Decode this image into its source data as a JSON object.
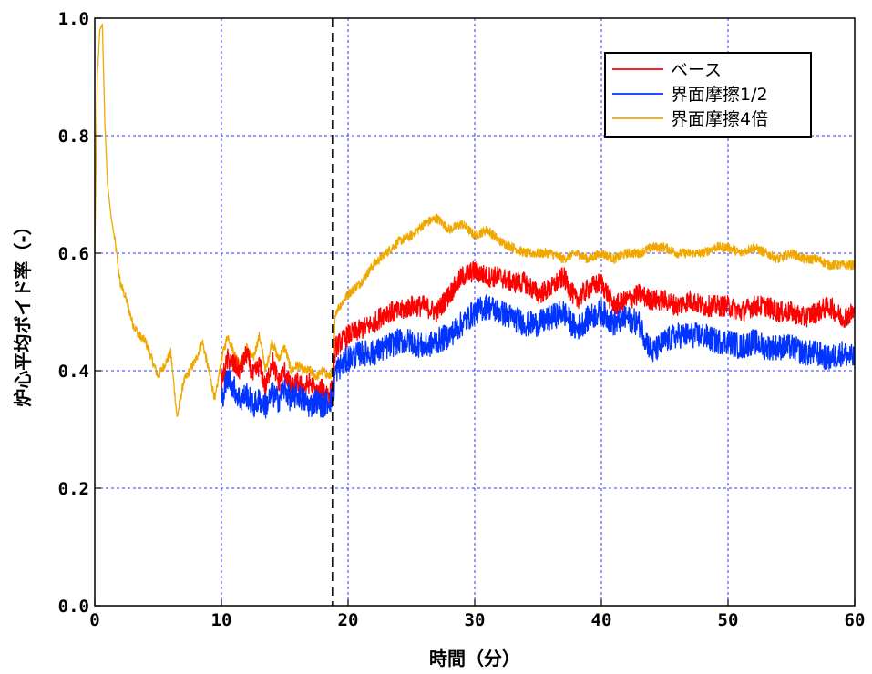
{
  "chart_data": {
    "type": "line",
    "xlabel": "時間（分）",
    "ylabel": "炉心平均ボイド率（-）",
    "xlim": [
      0,
      60
    ],
    "ylim": [
      0.0,
      1.0
    ],
    "x_ticks": [
      "0",
      "10",
      "20",
      "30",
      "40",
      "50",
      "60"
    ],
    "y_ticks": [
      "0.0",
      "0.2",
      "0.4",
      "0.6",
      "0.8",
      "1.0"
    ],
    "grid": true,
    "grid_color": "#3333ff",
    "legend_position": "top-right",
    "vertical_marker_x": 18.8,
    "series": [
      {
        "name": "ベース",
        "color": "#ff0000",
        "x": [
          10,
          10.5,
          11,
          11.5,
          12,
          12.5,
          13,
          13.5,
          14,
          14.5,
          15,
          15.5,
          16,
          16.5,
          17,
          17.5,
          18,
          18.5,
          18.8,
          19,
          20,
          21,
          22,
          23,
          24,
          25,
          26,
          27,
          28,
          29,
          30,
          31,
          32,
          33,
          34,
          35,
          36,
          37,
          38,
          39,
          40,
          41,
          42,
          43,
          44,
          45,
          46,
          47,
          48,
          49,
          50,
          51,
          52,
          53,
          54,
          55,
          56,
          57,
          58,
          59,
          60
        ],
        "values": [
          0.38,
          0.42,
          0.41,
          0.4,
          0.43,
          0.39,
          0.41,
          0.37,
          0.42,
          0.38,
          0.4,
          0.37,
          0.38,
          0.37,
          0.38,
          0.36,
          0.37,
          0.36,
          0.37,
          0.44,
          0.46,
          0.47,
          0.48,
          0.5,
          0.5,
          0.51,
          0.51,
          0.5,
          0.53,
          0.56,
          0.57,
          0.56,
          0.56,
          0.55,
          0.55,
          0.53,
          0.54,
          0.56,
          0.52,
          0.54,
          0.55,
          0.51,
          0.52,
          0.53,
          0.52,
          0.52,
          0.51,
          0.52,
          0.51,
          0.51,
          0.51,
          0.5,
          0.51,
          0.51,
          0.5,
          0.5,
          0.49,
          0.5,
          0.51,
          0.49,
          0.5
        ],
        "noise": 0.018
      },
      {
        "name": "界面摩擦1/2",
        "color": "#0033ff",
        "x": [
          10,
          10.5,
          11,
          11.5,
          12,
          12.5,
          13,
          13.5,
          14,
          14.5,
          15,
          15.5,
          16,
          16.5,
          17,
          17.5,
          18,
          18.5,
          18.8,
          19,
          20,
          21,
          22,
          23,
          24,
          25,
          26,
          27,
          28,
          29,
          30,
          31,
          32,
          33,
          34,
          35,
          36,
          37,
          38,
          39,
          40,
          41,
          42,
          43,
          44,
          45,
          46,
          47,
          48,
          49,
          50,
          51,
          52,
          53,
          54,
          55,
          56,
          57,
          58,
          59,
          60
        ],
        "values": [
          0.35,
          0.39,
          0.37,
          0.35,
          0.36,
          0.34,
          0.35,
          0.34,
          0.36,
          0.35,
          0.37,
          0.35,
          0.36,
          0.35,
          0.34,
          0.35,
          0.34,
          0.35,
          0.35,
          0.4,
          0.42,
          0.43,
          0.43,
          0.44,
          0.45,
          0.45,
          0.44,
          0.45,
          0.46,
          0.48,
          0.5,
          0.51,
          0.5,
          0.49,
          0.48,
          0.48,
          0.49,
          0.5,
          0.47,
          0.49,
          0.5,
          0.48,
          0.49,
          0.48,
          0.43,
          0.45,
          0.46,
          0.46,
          0.46,
          0.45,
          0.45,
          0.44,
          0.45,
          0.44,
          0.44,
          0.44,
          0.43,
          0.43,
          0.42,
          0.43,
          0.42
        ],
        "noise": 0.022
      },
      {
        "name": "界面摩擦4倍",
        "color": "#f0a800",
        "x": [
          0,
          0.2,
          0.4,
          0.6,
          0.8,
          1.0,
          1.3,
          1.6,
          2.0,
          2.5,
          3.0,
          3.5,
          4.0,
          4.5,
          5.0,
          5.5,
          6.0,
          6.5,
          7.0,
          7.5,
          8.0,
          8.5,
          9.0,
          9.5,
          10,
          10.5,
          11,
          11.5,
          12,
          12.5,
          13,
          13.5,
          14,
          14.5,
          15,
          15.5,
          16,
          16.5,
          17,
          17.5,
          18,
          18.5,
          18.8,
          19,
          20,
          21,
          22,
          23,
          24,
          25,
          26,
          27,
          28,
          29,
          30,
          31,
          32,
          33,
          34,
          35,
          36,
          37,
          38,
          39,
          40,
          41,
          42,
          43,
          44,
          45,
          46,
          47,
          48,
          49,
          50,
          51,
          52,
          53,
          54,
          55,
          56,
          57,
          58,
          59,
          60
        ],
        "values": [
          0.6,
          0.9,
          0.98,
          0.99,
          0.82,
          0.72,
          0.66,
          0.62,
          0.55,
          0.52,
          0.48,
          0.46,
          0.45,
          0.42,
          0.39,
          0.41,
          0.43,
          0.32,
          0.38,
          0.4,
          0.42,
          0.45,
          0.4,
          0.35,
          0.42,
          0.46,
          0.43,
          0.41,
          0.44,
          0.42,
          0.46,
          0.4,
          0.45,
          0.42,
          0.44,
          0.4,
          0.41,
          0.4,
          0.4,
          0.39,
          0.4,
          0.39,
          0.4,
          0.5,
          0.53,
          0.55,
          0.58,
          0.6,
          0.62,
          0.63,
          0.65,
          0.66,
          0.64,
          0.65,
          0.63,
          0.64,
          0.62,
          0.61,
          0.6,
          0.6,
          0.6,
          0.59,
          0.6,
          0.59,
          0.6,
          0.59,
          0.6,
          0.6,
          0.61,
          0.61,
          0.6,
          0.6,
          0.6,
          0.61,
          0.61,
          0.6,
          0.61,
          0.6,
          0.59,
          0.6,
          0.59,
          0.59,
          0.58,
          0.58,
          0.58
        ],
        "noise": 0.008
      }
    ]
  }
}
